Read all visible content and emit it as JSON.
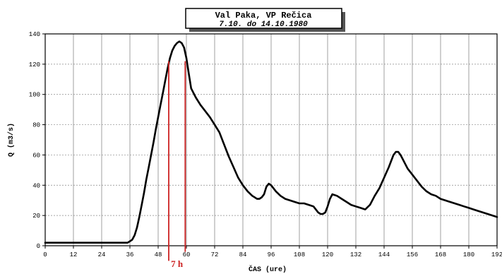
{
  "chart_data": {
    "type": "line",
    "title": "Val Paka, VP Rečica",
    "subtitle": "7.10. do 14.10.1980",
    "xlabel": "ČAS (ure)",
    "ylabel": "Q (m3/s)",
    "xlim": [
      0,
      192
    ],
    "ylim": [
      0,
      140
    ],
    "x_ticks": [
      0,
      12,
      24,
      36,
      48,
      60,
      72,
      84,
      96,
      108,
      120,
      132,
      144,
      156,
      168,
      180,
      192
    ],
    "y_ticks": [
      0,
      20,
      40,
      60,
      80,
      100,
      120,
      140
    ],
    "grid": true,
    "series": [
      {
        "name": "",
        "color": "#000000",
        "x": [
          0,
          10,
          20,
          30,
          35,
          36,
          37,
          38,
          39,
          40,
          41,
          42,
          43,
          44,
          45,
          46,
          47,
          48,
          49,
          50,
          51,
          52,
          53,
          54,
          55,
          56,
          57,
          58,
          59,
          60,
          61,
          62,
          64,
          66,
          68,
          70,
          72,
          74,
          76,
          78,
          80,
          82,
          84,
          86,
          88,
          89,
          90,
          91,
          92,
          93,
          94,
          95,
          96,
          98,
          100,
          102,
          104,
          106,
          108,
          110,
          112,
          114,
          116,
          117,
          118,
          119,
          120,
          121,
          122,
          124,
          126,
          128,
          130,
          132,
          134,
          136,
          138,
          140,
          142,
          144,
          146,
          147,
          148,
          149,
          150,
          151,
          152,
          153,
          154,
          156,
          158,
          160,
          162,
          164,
          166,
          168,
          170,
          172,
          174,
          176,
          178,
          180,
          182,
          184,
          186,
          188,
          190,
          192
        ],
        "values": [
          2,
          2,
          2,
          2,
          2,
          3,
          4,
          7,
          12,
          19,
          27,
          35,
          44,
          52,
          60,
          68,
          77,
          85,
          93,
          101,
          109,
          117,
          124,
          129,
          132,
          134,
          135,
          134,
          131,
          124,
          114,
          104,
          98,
          93,
          89,
          85,
          80,
          75,
          67,
          59,
          52,
          45,
          40,
          36,
          33,
          32,
          31,
          31,
          32,
          34,
          39,
          41,
          40,
          36,
          33,
          31,
          30,
          29,
          28,
          28,
          27,
          26,
          22,
          21,
          21,
          22,
          26,
          31,
          34,
          33,
          31,
          29,
          27,
          26,
          25,
          24,
          27,
          33,
          38,
          45,
          52,
          56,
          60,
          62,
          62,
          60,
          57,
          54,
          51,
          47,
          43,
          39,
          36,
          34,
          33,
          31,
          30,
          29,
          28,
          27,
          26,
          25,
          24,
          23,
          22,
          21,
          20,
          19
        ]
      }
    ],
    "annotations": [
      {
        "type": "vline",
        "x": 52.5,
        "y_from": -10,
        "y_to": 122,
        "color": "#cc2222"
      },
      {
        "type": "vline",
        "x": 59.5,
        "y_from": -4,
        "y_to": 122,
        "color": "#cc2222"
      },
      {
        "type": "text",
        "text": "7 h",
        "x": 56,
        "color": "#cc2222"
      }
    ]
  }
}
